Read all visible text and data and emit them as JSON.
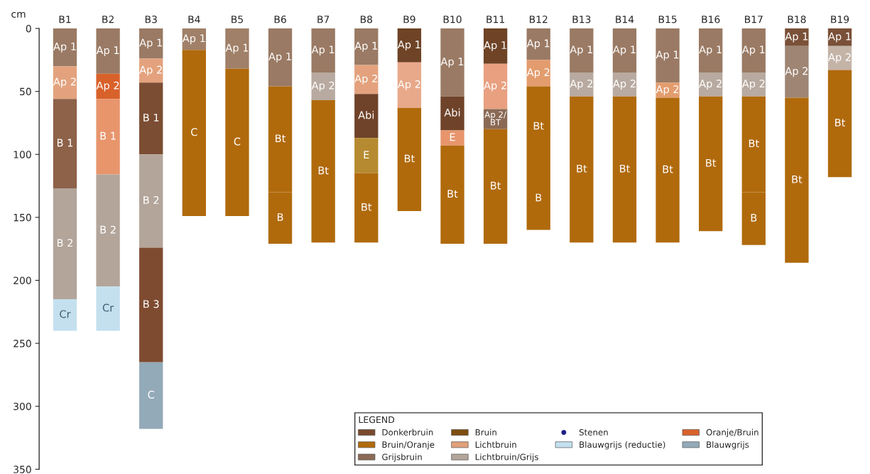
{
  "chart_data": {
    "type": "bar",
    "stacked": true,
    "ylabel": "cm",
    "legend_title": "LEGEND",
    "legend": "bottom right",
    "grid": false,
    "categories": [
      "B1",
      "B2",
      "B3",
      "B4",
      "B5",
      "B6",
      "B7",
      "B8",
      "B9",
      "B10",
      "B11",
      "B12",
      "B13",
      "B14",
      "B15",
      "B16",
      "B17",
      "B18",
      "B19"
    ],
    "ylim": [
      350,
      0
    ],
    "yticks": [
      0,
      50,
      100,
      150,
      200,
      250,
      300,
      350
    ],
    "series": [
      {
        "values": [
          30,
          36,
          24,
          17,
          32,
          46,
          35,
          29,
          27,
          54,
          28,
          25,
          35,
          35,
          43,
          35,
          35,
          14,
          14
        ],
        "value_labels": [
          "Ap 1",
          "Ap 1",
          "Ap 1",
          "Ap 1",
          "Ap 1",
          "Ap 1",
          "Ap 1",
          "Ap 1",
          "Ap 1",
          "Ap 1",
          "Ap 1",
          "Ap 1",
          "Ap 1",
          "Ap 1",
          "Ap 1",
          "Ap 1",
          "Ap 1",
          "Ap 1",
          "Ap 1"
        ],
        "colors": [
          "#9a7a64",
          "#9a7a64",
          "#9a7a64",
          "#a08068",
          "#a08068",
          "#9a7a64",
          "#9a7a64",
          "#9a7a64",
          "#6e4326",
          "#9a7a64",
          "#6e4326",
          "#9a7a64",
          "#9a7a64",
          "#9a7a64",
          "#9a7a64",
          "#9a7a64",
          "#9a7a64",
          "#7a5038",
          "#7a5038"
        ]
      },
      {
        "values": [
          26,
          20,
          19,
          132,
          117,
          84,
          22,
          23,
          36,
          27,
          36,
          21,
          19,
          19,
          12,
          19,
          19,
          41,
          19
        ],
        "value_labels": [
          "Ap 2",
          "Ap 2",
          "Ap 2",
          "C",
          "C",
          "Bt",
          "Ap 2",
          "Ap 2",
          "Ap 2",
          "Abi",
          "Ap 2",
          "Ap 2",
          "Ap 2",
          "Ap 2",
          "Ap 2",
          "Ap 2",
          "Ap 2",
          "Ap 2",
          "Ap 2"
        ],
        "colors": [
          "#e3a27d",
          "#d8612a",
          "#e3a27d",
          "#b06a0c",
          "#b06a0c",
          "#b06a0c",
          "#b8aaa0",
          "#e3a27d",
          "#e8a98a",
          "#6f4329",
          "#e8a080",
          "#e39c6e",
          "#b8aaa0",
          "#b8aaa0",
          "#e39c6e",
          "#b8aaa0",
          "#b8aaa0",
          "#9e8574",
          "#c4b4a8"
        ]
      },
      {
        "values": [
          71,
          60,
          57,
          null,
          null,
          41,
          113,
          35,
          82,
          12,
          16,
          64,
          116,
          116,
          115,
          107,
          76,
          131,
          85
        ],
        "value_labels": [
          "B 1",
          "B 1",
          "B 1",
          null,
          null,
          "B",
          "Bt",
          "Abi",
          "Bt",
          "E",
          "Ap 2/\nBT",
          "Bt",
          "Bt",
          "Bt",
          "Bt",
          "Bt",
          "Bt",
          "Bt",
          "Bt"
        ],
        "colors": [
          "#8d6248",
          "#e8956c",
          "#7b4d33",
          null,
          null,
          "#b06a0c",
          "#b06a0c",
          "#6f4329",
          "#b06a0c",
          "#e8956c",
          "#8a6a55",
          "#b06a0c",
          "#b06a0c",
          "#b06a0c",
          "#b06a0c",
          "#b06a0c",
          "#b06a0c",
          "#b06a0c",
          "#b06a0c"
        ]
      },
      {
        "values": [
          88,
          89,
          74,
          null,
          null,
          null,
          null,
          28,
          null,
          78,
          91,
          50,
          null,
          null,
          null,
          null,
          42,
          null,
          null
        ],
        "value_labels": [
          "B 2",
          "B 2",
          "B 2",
          null,
          null,
          null,
          null,
          "E",
          null,
          "Bt",
          "Bt",
          "B",
          null,
          null,
          null,
          null,
          "B",
          null,
          null
        ],
        "colors": [
          "#b3a59a",
          "#b3a59a",
          "#b3a59a",
          null,
          null,
          null,
          null,
          "#b68a30",
          null,
          "#b06a0c",
          "#b06a0c",
          "#b06a0c",
          null,
          null,
          null,
          null,
          "#b06a0c",
          null,
          null
        ]
      },
      {
        "values": [
          25,
          35,
          91,
          null,
          null,
          null,
          null,
          55,
          null,
          null,
          null,
          null,
          null,
          null,
          null,
          null,
          null,
          null,
          null
        ],
        "value_labels": [
          "Cr",
          "Cr",
          "B 3",
          null,
          null,
          null,
          null,
          "Bt",
          null,
          null,
          null,
          null,
          null,
          null,
          null,
          null,
          null,
          null,
          null
        ],
        "colors": [
          "#c4e0ef",
          "#c4e0ef",
          "#7f4b30",
          null,
          null,
          null,
          null,
          "#b06a0c",
          null,
          null,
          null,
          null,
          null,
          null,
          null,
          null,
          null,
          null,
          null
        ]
      },
      {
        "values": [
          null,
          null,
          53,
          null,
          null,
          null,
          null,
          null,
          null,
          null,
          null,
          null,
          null,
          null,
          null,
          null,
          null,
          null,
          null
        ],
        "value_labels": [
          null,
          null,
          "C",
          null,
          null,
          null,
          null,
          null,
          null,
          null,
          null,
          null,
          null,
          null,
          null,
          null,
          null,
          null,
          null
        ],
        "colors": [
          null,
          null,
          "#93aab8",
          null,
          null,
          null,
          null,
          null,
          null,
          null,
          null,
          null,
          null,
          null,
          null,
          null,
          null,
          null,
          null
        ]
      },
      {
        "name": "Donkerbruin",
        "color": "#7a4a2e",
        "values": [
          null,
          null,
          null,
          null,
          null,
          null,
          null,
          null,
          null,
          null,
          null,
          null,
          null,
          null,
          null,
          null,
          null,
          null,
          null
        ]
      },
      {
        "name": "Bruin/Oranje",
        "color": "#b06a0c",
        "values": [
          null,
          null,
          null,
          null,
          null,
          null,
          null,
          null,
          null,
          null,
          null,
          null,
          null,
          null,
          null,
          null,
          null,
          null,
          null
        ]
      },
      {
        "name": "Grijsbruin",
        "color": "#8b6a55",
        "values": [
          null,
          null,
          null,
          null,
          null,
          null,
          null,
          null,
          null,
          null,
          null,
          null,
          null,
          null,
          null,
          null,
          null,
          null,
          null
        ]
      },
      {
        "name": "Bruin",
        "color": "#7d4e10",
        "values": [
          null,
          null,
          null,
          null,
          null,
          null,
          null,
          null,
          null,
          null,
          null,
          null,
          null,
          null,
          null,
          null,
          null,
          null,
          null
        ]
      },
      {
        "name": "Lichtbruin",
        "color": "#e0a07a",
        "values": [
          null,
          null,
          null,
          null,
          null,
          null,
          null,
          null,
          null,
          null,
          null,
          null,
          null,
          null,
          null,
          null,
          null,
          null,
          null
        ]
      },
      {
        "name": "Lichtbruin/Grijs",
        "color": "#b3a59a",
        "values": [
          null,
          null,
          null,
          null,
          null,
          null,
          null,
          null,
          null,
          null,
          null,
          null,
          null,
          null,
          null,
          null,
          null,
          null,
          null
        ]
      },
      {
        "name": "Stenen",
        "color": "#1f1f8a",
        "type": "scatter",
        "marker": "circle",
        "values": [
          null,
          null,
          null,
          null,
          null,
          null,
          null,
          null,
          null,
          null,
          null,
          null,
          null,
          null,
          null,
          null,
          null,
          null,
          null
        ]
      },
      {
        "name": "Blauwgrijs (reductie)",
        "color": "#c4e0ef",
        "values": [
          null,
          null,
          null,
          null,
          null,
          null,
          null,
          null,
          null,
          null,
          null,
          null,
          null,
          null,
          null,
          null,
          null,
          null,
          null
        ]
      },
      {
        "name": "Oranje/Bruin",
        "color": "#d9622b",
        "values": [
          null,
          null,
          null,
          null,
          null,
          null,
          null,
          null,
          null,
          null,
          null,
          null,
          null,
          null,
          null,
          null,
          null,
          null,
          null
        ]
      },
      {
        "name": "Blauwgrijs",
        "color": "#93aab8",
        "values": [
          null,
          null,
          null,
          null,
          null,
          null,
          null,
          null,
          null,
          null,
          null,
          null,
          null,
          null,
          null,
          null,
          null,
          null,
          null
        ]
      }
    ]
  }
}
